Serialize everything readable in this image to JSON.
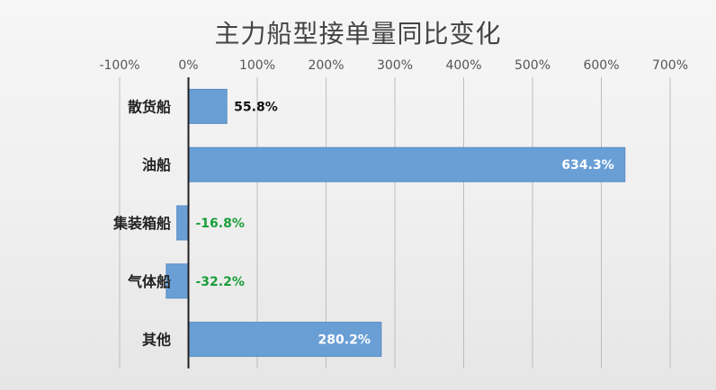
{
  "chart_data": {
    "type": "bar",
    "orientation": "horizontal",
    "title": "主力船型接单量同比变化",
    "categories": [
      "散货船",
      "油船",
      "集装箱船",
      "气体船",
      "其他"
    ],
    "values": [
      55.8,
      634.3,
      -16.8,
      -32.2,
      280.2
    ],
    "data_labels": [
      "55.8%",
      "634.3%",
      "-16.8%",
      "-32.2%",
      "280.2%"
    ],
    "x_ticks": [
      "-100%",
      "0%",
      "100%",
      "200%",
      "300%",
      "400%",
      "500%",
      "600%",
      "700%"
    ],
    "xlim": [
      -100,
      700
    ],
    "xlabel": "",
    "ylabel": "",
    "x_axis_position": "top",
    "grid": true,
    "legend": "none",
    "colors": {
      "bar_fill": "#6a9fd6",
      "bar_stroke": "#5b8cc2",
      "negative_label": "#1a9e3a",
      "label_dark": "#111111",
      "label_light": "#ffffff",
      "gridline": "#bdbdbd",
      "zero_line": "#222222"
    }
  }
}
